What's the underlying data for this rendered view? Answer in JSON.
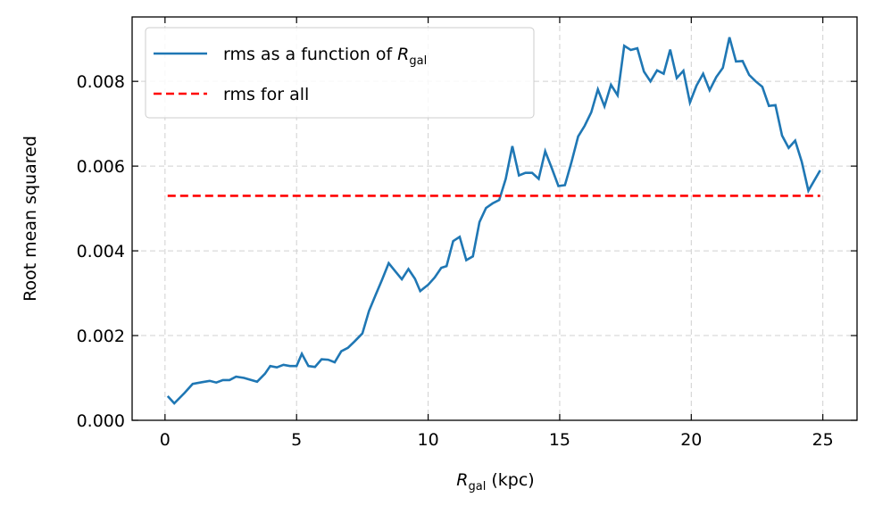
{
  "chart_data": {
    "type": "line",
    "xlabel": {
      "symbol": "R",
      "subscript": "gal",
      "text": "(kpc)"
    },
    "ylabel": "Root mean squared",
    "xlim": [
      -1.25,
      26.3
    ],
    "ylim": [
      0,
      0.00952
    ],
    "xticks": [
      0,
      5,
      10,
      15,
      20,
      25
    ],
    "yticks": [
      {
        "value": 0,
        "label": "0.000"
      },
      {
        "value": 0.002,
        "label": "0.002"
      },
      {
        "value": 0.004,
        "label": "0.004"
      },
      {
        "value": 0.006,
        "label": "0.006"
      },
      {
        "value": 0.008,
        "label": "0.008"
      }
    ],
    "grid": true,
    "legend": "upper left",
    "series": [
      {
        "name": {
          "text": "rms as a function of",
          "symbol": "R",
          "subscript": "gal"
        },
        "color": "#1f77b4",
        "style": "solid",
        "x": [
          0.1,
          0.35,
          0.75,
          1.05,
          1.4,
          1.7,
          1.95,
          2.2,
          2.45,
          2.7,
          3.0,
          3.5,
          3.8,
          4.0,
          4.25,
          4.5,
          4.75,
          5.0,
          5.2,
          5.45,
          5.7,
          5.95,
          6.2,
          6.45,
          6.7,
          6.95,
          7.2,
          7.5,
          7.75,
          8.0,
          8.25,
          8.5,
          8.75,
          9.0,
          9.25,
          9.5,
          9.7,
          10.0,
          10.25,
          10.5,
          10.7,
          10.95,
          11.2,
          11.45,
          11.7,
          11.95,
          12.2,
          12.45,
          12.7,
          12.95,
          13.2,
          13.45,
          13.7,
          13.95,
          14.2,
          14.45,
          14.7,
          14.95,
          15.2,
          15.45,
          15.7,
          15.95,
          16.2,
          16.45,
          16.7,
          16.95,
          17.2,
          17.45,
          17.7,
          17.95,
          18.2,
          18.45,
          18.7,
          18.95,
          19.2,
          19.45,
          19.7,
          19.95,
          20.2,
          20.45,
          20.7,
          20.95,
          21.2,
          21.45,
          21.7,
          21.95,
          22.2,
          22.45,
          22.7,
          22.95,
          23.2,
          23.45,
          23.7,
          23.95,
          24.2,
          24.45,
          24.9
        ],
        "values": [
          0.00057,
          0.0004,
          0.00065,
          0.00086,
          0.0009,
          0.00093,
          0.00089,
          0.00095,
          0.00095,
          0.00103,
          0.001,
          0.00091,
          0.0011,
          0.00128,
          0.00125,
          0.00131,
          0.00128,
          0.00128,
          0.00157,
          0.00128,
          0.00126,
          0.00144,
          0.00143,
          0.00137,
          0.00163,
          0.00171,
          0.00186,
          0.00205,
          0.00258,
          0.00295,
          0.00332,
          0.00371,
          0.00352,
          0.00333,
          0.00357,
          0.00334,
          0.00305,
          0.0032,
          0.00337,
          0.0036,
          0.00364,
          0.00423,
          0.00433,
          0.00378,
          0.00387,
          0.00468,
          0.00501,
          0.00512,
          0.0052,
          0.0057,
          0.00647,
          0.00578,
          0.00584,
          0.00584,
          0.0057,
          0.00635,
          0.00595,
          0.00553,
          0.00555,
          0.0061,
          0.0067,
          0.00695,
          0.00727,
          0.00781,
          0.00741,
          0.00792,
          0.00767,
          0.00884,
          0.00874,
          0.00878,
          0.00823,
          0.008,
          0.00826,
          0.00818,
          0.00875,
          0.00808,
          0.00825,
          0.0075,
          0.0079,
          0.00818,
          0.00779,
          0.0081,
          0.00832,
          0.00904,
          0.00847,
          0.00848,
          0.00815,
          0.008,
          0.00787,
          0.00742,
          0.00744,
          0.00672,
          0.00643,
          0.0066,
          0.0061,
          0.00542,
          0.0059
        ]
      },
      {
        "name": {
          "text": "rms for all"
        },
        "color": "#ff0000",
        "style": "dashed",
        "x": [
          0.1,
          24.9
        ],
        "values": [
          0.0053,
          0.0053
        ]
      }
    ]
  }
}
